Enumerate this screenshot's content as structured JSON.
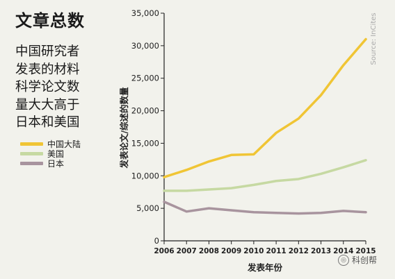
{
  "title": "文章总数",
  "subtitle_lines": [
    "中国研究者",
    "发表的材料",
    "科学论文数",
    "量大大高于",
    "日本和美国"
  ],
  "source": "Source: InCites",
  "watermark": "科创帮",
  "colors": {
    "china": "#f0c535",
    "usa": "#c6d9a2",
    "japan": "#a8949e"
  },
  "chart_data": {
    "type": "line",
    "xlabel": "发表年份",
    "ylabel": "发表论文/综述的数量",
    "x": [
      2006,
      2007,
      2008,
      2009,
      2010,
      2011,
      2012,
      2013,
      2014,
      2015
    ],
    "x_ticks": [
      "2006",
      "2007",
      "2008",
      "2009",
      "2010",
      "2011",
      "2012",
      "2013",
      "2014",
      "2015"
    ],
    "ylim": [
      0,
      35000
    ],
    "y_ticks": [
      "0",
      "5,000",
      "10,000",
      "15,000",
      "20,000",
      "25,000",
      "30,000",
      "35,000"
    ],
    "grid": false,
    "legend_position": "left",
    "series": [
      {
        "name": "中国大陆",
        "color": "#f0c535",
        "values": [
          9800,
          10900,
          12200,
          13200,
          13300,
          16600,
          18800,
          22400,
          27000,
          31000
        ]
      },
      {
        "name": "美国",
        "color": "#c6d9a2",
        "values": [
          7700,
          7700,
          7900,
          8100,
          8600,
          9200,
          9500,
          10300,
          11300,
          12400
        ]
      },
      {
        "name": "日本",
        "color": "#a8949e",
        "values": [
          6000,
          4500,
          5000,
          4700,
          4400,
          4300,
          4200,
          4300,
          4600,
          4400
        ]
      }
    ]
  }
}
